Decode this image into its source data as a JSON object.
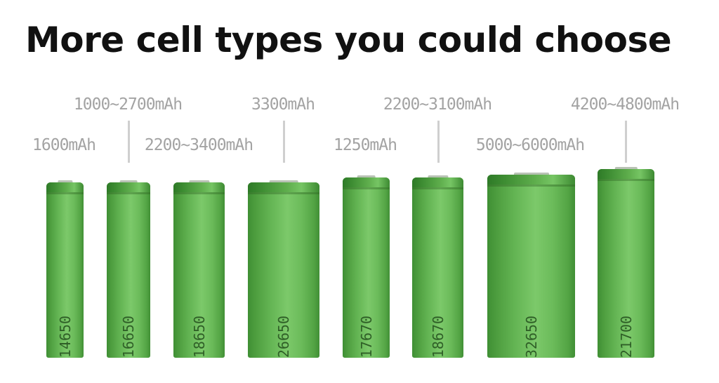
{
  "title": "More cell types you could choose",
  "cells": [
    {
      "model": "14650",
      "capacity": "1600mAh"
    },
    {
      "model": "16650",
      "capacity": "1000~2700mAh"
    },
    {
      "model": "18650",
      "capacity": "2200~3400mAh"
    },
    {
      "model": "26650",
      "capacity": "3300mAh"
    },
    {
      "model": "17670",
      "capacity": "1250mAh"
    },
    {
      "model": "18670",
      "capacity": "2200~3100mAh"
    },
    {
      "model": "32650",
      "capacity": "5000~6000mAh"
    },
    {
      "model": "21700",
      "capacity": "4200~4800mAh"
    }
  ],
  "colors": {
    "cell_green": "#62b352",
    "label_gray": "#a3a3a3"
  }
}
